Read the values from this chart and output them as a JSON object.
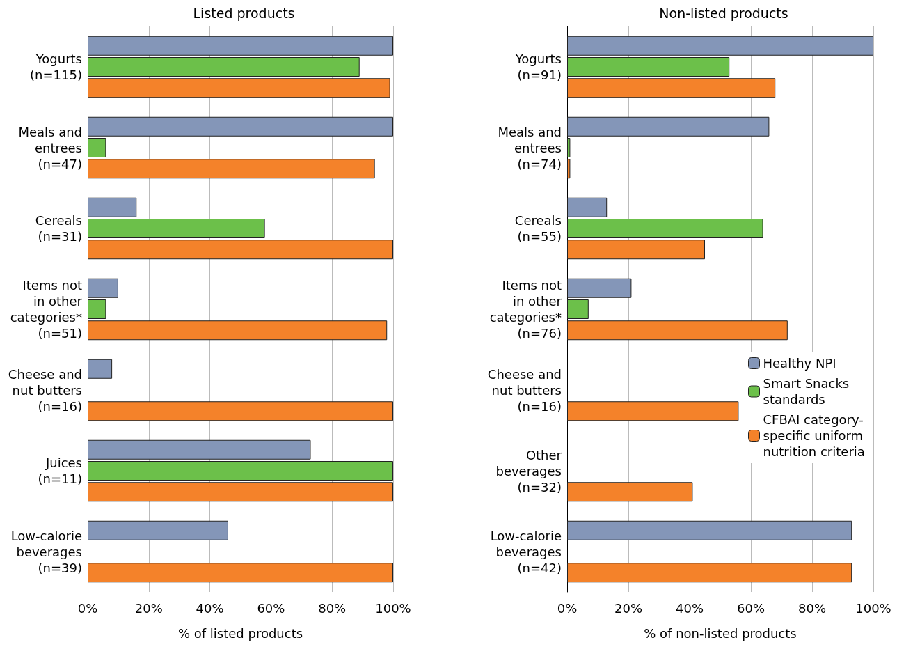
{
  "chart_data": [
    {
      "type": "bar",
      "orientation": "horizontal",
      "title": "Listed products",
      "xlabel": "% of listed products",
      "categories": [
        "Yogurts\n(n=115)",
        "Meals and\nentrees\n(n=47)",
        "Cereals\n(n=31)",
        "Items not\nin other\ncategories*\n(n=51)",
        "Cheese and\nnut butters\n(n=16)",
        "Juices\n(n=11)",
        "Low-calorie\nbeverages\n(n=39)"
      ],
      "series": [
        {
          "color": "#8496b8",
          "values": [
            100,
            100,
            16,
            10,
            8,
            73,
            46
          ]
        },
        {
          "color": "#6cc04a",
          "values": [
            89,
            6,
            58,
            6,
            0,
            100,
            0
          ]
        },
        {
          "color": "#f4822a",
          "values": [
            99,
            94,
            100,
            98,
            100,
            100,
            100
          ]
        }
      ],
      "xlim": [
        0,
        100
      ],
      "xticks": [
        {
          "value": 0,
          "label": "0%"
        },
        {
          "value": 20,
          "label": "20%"
        },
        {
          "value": 40,
          "label": "40%"
        },
        {
          "value": 60,
          "label": "60%"
        },
        {
          "value": 80,
          "label": "80%"
        },
        {
          "value": 100,
          "label": "100%"
        }
      ],
      "grid": "x",
      "legend": false
    },
    {
      "type": "bar",
      "orientation": "horizontal",
      "title": "Non-listed products",
      "xlabel": "% of non-listed products",
      "categories": [
        "Yogurts\n(n=91)",
        "Meals and\nentrees\n(n=74)",
        "Cereals\n(n=55)",
        "Items not\nin other\ncategories*\n(n=76)",
        "Cheese and\nnut butters\n(n=16)",
        "Other\nbeverages\n(n=32)",
        "Low-calorie\nbeverages\n(n=42)"
      ],
      "series": [
        {
          "name": "Healthy NPI",
          "color": "#8496b8",
          "values": [
            100,
            66,
            13,
            21,
            0,
            0,
            93
          ]
        },
        {
          "name": "Smart Snacks\nstandards",
          "color": "#6cc04a",
          "values": [
            53,
            1,
            64,
            7,
            0,
            0,
            0
          ]
        },
        {
          "name": "CFBAI category-\nspecific uniform\nnutrition criteria",
          "color": "#f4822a",
          "values": [
            68,
            1,
            45,
            72,
            56,
            41,
            93
          ]
        }
      ],
      "xlim": [
        0,
        100
      ],
      "xticks": [
        {
          "value": 0,
          "label": "0%"
        },
        {
          "value": 20,
          "label": "20%"
        },
        {
          "value": 40,
          "label": "40%"
        },
        {
          "value": 60,
          "label": "60%"
        },
        {
          "value": 80,
          "label": "80%"
        },
        {
          "value": 100,
          "label": "100%"
        }
      ],
      "grid": "x",
      "legend": "right"
    }
  ]
}
